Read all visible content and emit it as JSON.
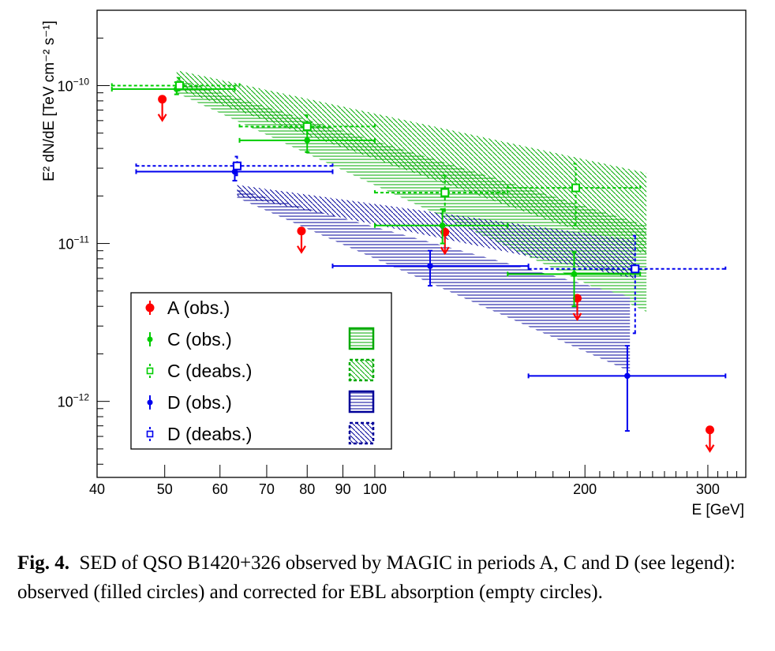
{
  "chart_data": {
    "type": "scatter",
    "x_scale": "log",
    "y_scale": "log",
    "xlim": [
      40,
      340
    ],
    "ylim": [
      3.3e-13,
      3e-10
    ],
    "xlabel": "E [GeV]",
    "ylabel": "E² dN/dE [TeV cm⁻² s⁻¹]",
    "x_ticks": [
      {
        "value": 40,
        "label": "40"
      },
      {
        "value": 50,
        "label": "50"
      },
      {
        "value": 60,
        "label": "60"
      },
      {
        "value": 70,
        "label": "70"
      },
      {
        "value": 80,
        "label": "80"
      },
      {
        "value": 90,
        "label": "90"
      },
      {
        "value": 100,
        "label": "100"
      },
      {
        "value": 200,
        "label": "200"
      },
      {
        "value": 300,
        "label": "300"
      }
    ],
    "y_ticks": [
      {
        "value": 1e-10,
        "mant": "10",
        "exp": "−10"
      },
      {
        "value": 1e-11,
        "mant": "10",
        "exp": "−11"
      },
      {
        "value": 1e-12,
        "mant": "10",
        "exp": "−12"
      }
    ],
    "legend_position": "bottom-left",
    "legend": [
      {
        "label": "A (obs.)",
        "series": "A_obs"
      },
      {
        "label": "C (obs.)",
        "series": "C_obs"
      },
      {
        "label": "C (deabs.)",
        "series": "C_deabs"
      },
      {
        "label": "D (obs.)",
        "series": "D_obs"
      },
      {
        "label": "D (deabs.)",
        "series": "D_deabs"
      }
    ],
    "series": [
      {
        "id": "A_obs",
        "color": "#ff0000",
        "style": "upper-limit",
        "points": [
          {
            "x": 49.6,
            "y": 8.2e-11
          },
          {
            "x": 78.5,
            "y": 1.2e-11
          },
          {
            "x": 126,
            "y": 1.18e-11
          },
          {
            "x": 195,
            "y": 4.5e-12
          },
          {
            "x": 302,
            "y": 6.6e-13
          }
        ]
      },
      {
        "id": "C_obs",
        "color": "#00cc00",
        "style": "filled-circle",
        "points": [
          {
            "x": 52,
            "y": 9.5e-11,
            "xlo": 42,
            "xhi": 63,
            "ylo": 8.8e-11,
            "yhi": 1.05e-10
          },
          {
            "x": 80,
            "y": 4.5e-11,
            "xlo": 64,
            "xhi": 100,
            "ylo": 3.8e-11,
            "yhi": 5.3e-11
          },
          {
            "x": 125,
            "y": 1.3e-11,
            "xlo": 100,
            "xhi": 155,
            "ylo": 1e-11,
            "yhi": 1.65e-11
          },
          {
            "x": 193,
            "y": 6.4e-12,
            "xlo": 155,
            "xhi": 240,
            "ylo": 4e-12,
            "yhi": 8.8e-12
          }
        ]
      },
      {
        "id": "C_deabs",
        "color": "#00cc00",
        "style": "open-square-dashed",
        "points": [
          {
            "x": 52.5,
            "y": 1e-10,
            "xlo": 42,
            "xhi": 64,
            "ylo": 9.3e-11,
            "yhi": 1.12e-10
          },
          {
            "x": 80,
            "y": 5.5e-11,
            "xlo": 64,
            "xhi": 100,
            "ylo": 4.5e-11,
            "yhi": 6.5e-11
          },
          {
            "x": 126,
            "y": 2.1e-11,
            "xlo": 100,
            "xhi": 155,
            "ylo": 1.6e-11,
            "yhi": 2.7e-11
          },
          {
            "x": 194,
            "y": 2.25e-11,
            "xlo": 155,
            "xhi": 240,
            "ylo": 1.3e-11,
            "yhi": 3.2e-11
          }
        ]
      },
      {
        "id": "D_obs",
        "color": "#0000ee",
        "style": "filled-circle",
        "points": [
          {
            "x": 63,
            "y": 2.85e-11,
            "xlo": 45.5,
            "xhi": 87,
            "ylo": 2.5e-11,
            "yhi": 3.2e-11
          },
          {
            "x": 120,
            "y": 7.2e-12,
            "xlo": 87,
            "xhi": 166,
            "ylo": 5.4e-12,
            "yhi": 9e-12
          },
          {
            "x": 230,
            "y": 1.45e-12,
            "xlo": 166,
            "xhi": 318,
            "ylo": 6.5e-13,
            "yhi": 2.25e-12
          }
        ]
      },
      {
        "id": "D_deabs",
        "color": "#0000ee",
        "style": "open-square-dashed",
        "points": [
          {
            "x": 63.5,
            "y": 3.1e-11,
            "xlo": 45.5,
            "xhi": 87,
            "ylo": 2.7e-11,
            "yhi": 3.55e-11
          },
          {
            "x": 236,
            "y": 6.9e-12,
            "xlo": 166,
            "xhi": 318,
            "ylo": 2.7e-12,
            "yhi": 1.12e-11
          }
        ]
      }
    ],
    "bands": [
      {
        "id": "C_obs_band",
        "color": "#00aa00",
        "hatch": "horizontal",
        "upper": [
          [
            52,
            1.1e-10
          ],
          [
            245,
            1.3e-11
          ]
        ],
        "lower": [
          [
            52,
            9e-11
          ],
          [
            245,
            3.7e-12
          ]
        ]
      },
      {
        "id": "C_deabs_band",
        "color": "#00aa00",
        "hatch": "diagonal",
        "upper": [
          [
            52,
            1.25e-10
          ],
          [
            245,
            2.8e-11
          ]
        ],
        "lower": [
          [
            52,
            9.5e-11
          ],
          [
            245,
            8.5e-12
          ]
        ]
      },
      {
        "id": "D_obs_band",
        "color": "#000099",
        "hatch": "horizontal",
        "upper": [
          [
            63.5,
            2.2e-11
          ],
          [
            232,
            4.6e-12
          ]
        ],
        "lower": [
          [
            63.5,
            1.95e-11
          ],
          [
            232,
            1.55e-12
          ]
        ]
      },
      {
        "id": "D_deabs_band",
        "color": "#000099",
        "hatch": "diagonal",
        "upper": [
          [
            63.5,
            2.35e-11
          ],
          [
            236,
            1.05e-11
          ]
        ],
        "lower": [
          [
            63.5,
            2e-11
          ],
          [
            236,
            6e-12
          ]
        ]
      }
    ]
  },
  "caption": {
    "label": "Fig. 4.",
    "text": "SED of QSO B1420+326 observed by MAGIC in periods A, C and D (see legend): observed (filled circles) and corrected for EBL absorption (empty circles)."
  }
}
